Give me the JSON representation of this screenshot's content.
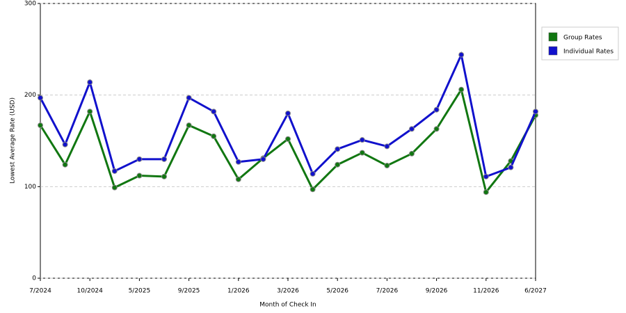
{
  "chart_data": {
    "type": "line",
    "x_label": "Month of Check In",
    "y_label": "Lowest Average Rate (USD)",
    "categories": [
      "7/2024",
      null,
      "10/2024",
      null,
      "5/2025",
      null,
      "9/2025",
      null,
      "1/2026",
      null,
      "3/2026",
      null,
      "5/2026",
      null,
      "7/2026",
      null,
      "9/2026",
      null,
      "11/2026",
      null,
      "6/2027"
    ],
    "series": [
      {
        "name": "Group Rates",
        "color": "#117711",
        "values": [
          167,
          124,
          182,
          99,
          112,
          111,
          167,
          155,
          108,
          131,
          152,
          97,
          124,
          137,
          123,
          136,
          163,
          206,
          94,
          128,
          178
        ]
      },
      {
        "name": "Individual Rates",
        "color": "#1111cc",
        "values": [
          197,
          146,
          214,
          117,
          130,
          130,
          197,
          182,
          127,
          130,
          180,
          114,
          141,
          151,
          144,
          163,
          184,
          244,
          111,
          121,
          182
        ]
      }
    ],
    "ylim": [
      0,
      300
    ],
    "yticks": [
      0,
      100,
      200,
      300
    ],
    "grid": true,
    "legend": "right"
  }
}
